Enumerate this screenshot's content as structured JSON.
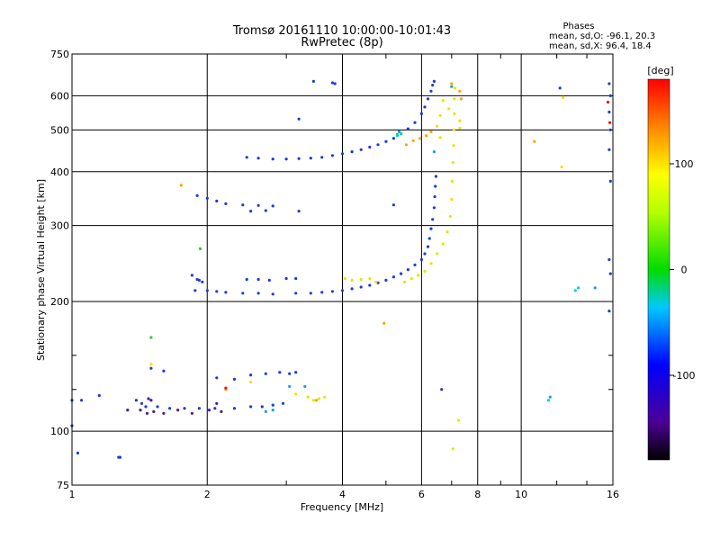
{
  "chart_data": {
    "type": "scatter",
    "title": "Tromsø 20161110 10:00:00-10:01:43",
    "subtitle": "RwPretec (8p)",
    "stats": {
      "heading": "Phases",
      "line_o": "mean, sd,O: -96.1, 20.3",
      "line_x": "mean, sd,X:  96.4, 18.4"
    },
    "xlabel": "Frequency [MHz]",
    "ylabel": "Stationary phase Virtual Height [km]",
    "x_scale": "log",
    "y_scale": "log",
    "xlim": [
      1,
      16
    ],
    "ylim": [
      75,
      750
    ],
    "x_ticks": [
      {
        "v": 1,
        "label": "1"
      },
      {
        "v": 2,
        "label": "2"
      },
      {
        "v": 4,
        "label": "4"
      },
      {
        "v": 6,
        "label": "6"
      },
      {
        "v": 8,
        "label": "8"
      },
      {
        "v": 10,
        "label": "10"
      },
      {
        "v": 16,
        "label": "16"
      }
    ],
    "x_minor_ticks": [
      3,
      5,
      7,
      9,
      12,
      14
    ],
    "y_ticks": [
      {
        "v": 75,
        "label": "75"
      },
      {
        "v": 100,
        "label": "100"
      },
      {
        "v": 200,
        "label": "200"
      },
      {
        "v": 300,
        "label": "300"
      },
      {
        "v": 400,
        "label": "400"
      },
      {
        "v": 500,
        "label": "500"
      },
      {
        "v": 600,
        "label": "600"
      },
      {
        "v": 750,
        "label": "750"
      }
    ],
    "y_minor_ticks": [
      125,
      150
    ],
    "grid": true,
    "colorbar": {
      "label": "[deg]",
      "range": [
        -180,
        180
      ],
      "ticks": [
        {
          "v": 100,
          "label": "100"
        },
        {
          "v": 0,
          "label": "0"
        },
        {
          "v": -100,
          "label": "-100"
        }
      ]
    },
    "series": [
      {
        "color": "#1e3cd2",
        "phase": -96,
        "points": [
          [
            1.0,
            118
          ],
          [
            1.05,
            118
          ],
          [
            1.15,
            121
          ],
          [
            1.0,
            103
          ],
          [
            1.03,
            89
          ],
          [
            1.27,
            87
          ],
          [
            1.28,
            87
          ],
          [
            1.39,
            118
          ],
          [
            1.43,
            116
          ],
          [
            1.46,
            114
          ],
          [
            1.55,
            114
          ],
          [
            1.65,
            113
          ],
          [
            1.78,
            113
          ],
          [
            1.92,
            113
          ],
          [
            2.08,
            113
          ],
          [
            2.3,
            113
          ],
          [
            2.5,
            114
          ],
          [
            2.65,
            114
          ],
          [
            2.8,
            115
          ],
          [
            2.95,
            116
          ],
          [
            2.1,
            133
          ],
          [
            2.3,
            132
          ],
          [
            2.5,
            135
          ],
          [
            2.7,
            136
          ],
          [
            2.9,
            137
          ],
          [
            3.05,
            136
          ],
          [
            3.15,
            137
          ],
          [
            1.5,
            140
          ],
          [
            1.6,
            138
          ],
          [
            1.85,
            230
          ],
          [
            1.9,
            225
          ],
          [
            1.95,
            222
          ],
          [
            2.0,
            212
          ],
          [
            2.1,
            211
          ],
          [
            2.2,
            210
          ],
          [
            2.4,
            209
          ],
          [
            2.6,
            209
          ],
          [
            2.8,
            208
          ],
          [
            2.45,
            225
          ],
          [
            2.6,
            225
          ],
          [
            2.75,
            224
          ],
          [
            3.0,
            226
          ],
          [
            3.15,
            226
          ],
          [
            3.15,
            209
          ],
          [
            3.4,
            209
          ],
          [
            3.6,
            210
          ],
          [
            3.8,
            211
          ],
          [
            4.0,
            212
          ],
          [
            4.2,
            214
          ],
          [
            4.4,
            216
          ],
          [
            4.6,
            218
          ],
          [
            4.8,
            221
          ],
          [
            5.0,
            224
          ],
          [
            5.2,
            228
          ],
          [
            5.4,
            232
          ],
          [
            5.6,
            237
          ],
          [
            5.8,
            243
          ],
          [
            6.0,
            250
          ],
          [
            6.1,
            258
          ],
          [
            6.2,
            268
          ],
          [
            6.25,
            280
          ],
          [
            6.3,
            295
          ],
          [
            6.35,
            310
          ],
          [
            6.4,
            330
          ],
          [
            6.42,
            350
          ],
          [
            6.44,
            370
          ],
          [
            6.46,
            390
          ],
          [
            1.9,
            352
          ],
          [
            2.0,
            347
          ],
          [
            2.1,
            342
          ],
          [
            2.2,
            337
          ],
          [
            2.4,
            335
          ],
          [
            2.6,
            334
          ],
          [
            2.8,
            333
          ],
          [
            3.2,
            324
          ],
          [
            2.5,
            324
          ],
          [
            2.7,
            325
          ],
          [
            2.45,
            432
          ],
          [
            2.6,
            430
          ],
          [
            2.8,
            428
          ],
          [
            3.0,
            428
          ],
          [
            3.2,
            429
          ],
          [
            3.4,
            430
          ],
          [
            3.6,
            432
          ],
          [
            3.8,
            436
          ],
          [
            4.0,
            440
          ],
          [
            4.2,
            445
          ],
          [
            4.4,
            450
          ],
          [
            4.6,
            456
          ],
          [
            4.8,
            462
          ],
          [
            5.0,
            470
          ],
          [
            5.2,
            478
          ],
          [
            5.4,
            490
          ],
          [
            5.6,
            503
          ],
          [
            5.8,
            520
          ],
          [
            6.0,
            545
          ],
          [
            6.1,
            565
          ],
          [
            6.2,
            590
          ],
          [
            6.3,
            615
          ],
          [
            6.35,
            635
          ],
          [
            6.4,
            648
          ],
          [
            3.45,
            648
          ],
          [
            3.8,
            643
          ],
          [
            3.85,
            640
          ],
          [
            3.2,
            530
          ],
          [
            12.2,
            625
          ],
          [
            15.7,
            640
          ],
          [
            15.8,
            600
          ],
          [
            15.7,
            550
          ],
          [
            15.8,
            500
          ],
          [
            15.7,
            450
          ],
          [
            15.8,
            380
          ],
          [
            15.7,
            250
          ],
          [
            15.8,
            232
          ],
          [
            15.7,
            190
          ],
          [
            5.2,
            335
          ],
          [
            6.65,
            125
          ],
          [
            1.92,
            224
          ],
          [
            1.88,
            212
          ]
        ]
      },
      {
        "color": "#4b1a96",
        "phase": -150,
        "points": [
          [
            1.42,
            112
          ],
          [
            1.47,
            110
          ],
          [
            1.52,
            111
          ],
          [
            1.6,
            110
          ],
          [
            1.72,
            112
          ],
          [
            1.85,
            110
          ],
          [
            2.02,
            112
          ],
          [
            2.15,
            111
          ],
          [
            1.5,
            118
          ],
          [
            2.1,
            116
          ],
          [
            1.33,
            112
          ],
          [
            1.48,
            119
          ]
        ]
      },
      {
        "color": "#19a0dc",
        "phase": -60,
        "points": [
          [
            2.7,
            111
          ],
          [
            2.8,
            112
          ],
          [
            3.05,
            127
          ],
          [
            3.3,
            127
          ],
          [
            5.35,
            495
          ],
          [
            6.4,
            445
          ],
          [
            7.0,
            630
          ],
          [
            11.6,
            120
          ],
          [
            14.6,
            215
          ]
        ]
      },
      {
        "color": "#e6e600",
        "phase": 95,
        "points": [
          [
            3.15,
            122
          ],
          [
            3.35,
            120
          ],
          [
            3.45,
            118
          ],
          [
            3.55,
            119
          ],
          [
            3.65,
            120
          ],
          [
            4.05,
            226
          ],
          [
            4.2,
            224
          ],
          [
            4.4,
            225
          ],
          [
            4.6,
            226
          ],
          [
            4.75,
            222
          ],
          [
            5.5,
            222
          ],
          [
            5.7,
            226
          ],
          [
            5.9,
            230
          ],
          [
            6.1,
            235
          ],
          [
            6.3,
            245
          ],
          [
            6.5,
            258
          ],
          [
            6.7,
            272
          ],
          [
            6.85,
            290
          ],
          [
            6.95,
            315
          ],
          [
            7.0,
            345
          ],
          [
            7.02,
            380
          ],
          [
            7.05,
            420
          ],
          [
            7.07,
            460
          ],
          [
            7.08,
            500
          ],
          [
            7.1,
            545
          ],
          [
            7.1,
            590
          ],
          [
            7.12,
            625
          ],
          [
            6.6,
            540
          ],
          [
            6.7,
            585
          ],
          [
            6.5,
            510
          ],
          [
            6.9,
            560
          ],
          [
            6.6,
            480
          ],
          [
            7.3,
            505
          ],
          [
            7.3,
            525
          ],
          [
            12.4,
            595
          ],
          [
            12.3,
            410
          ],
          [
            7.05,
            91
          ],
          [
            7.25,
            106
          ],
          [
            1.5,
            143
          ],
          [
            2.5,
            130
          ]
        ]
      },
      {
        "color": "#ffa000",
        "phase": 140,
        "points": [
          [
            1.75,
            372
          ],
          [
            4.95,
            178
          ],
          [
            5.55,
            462
          ],
          [
            5.75,
            472
          ],
          [
            5.95,
            478
          ],
          [
            6.15,
            485
          ],
          [
            6.3,
            495
          ],
          [
            7.3,
            615
          ],
          [
            7.35,
            590
          ],
          [
            7.0,
            640
          ],
          [
            10.7,
            470
          ],
          [
            3.5,
            118
          ],
          [
            2.2,
            125
          ]
        ]
      },
      {
        "color": "#32c832",
        "phase": 30,
        "points": [
          [
            1.5,
            165
          ],
          [
            1.93,
            265
          ],
          [
            5.3,
            488
          ]
        ]
      },
      {
        "color": "#e61414",
        "phase": 175,
        "points": [
          [
            2.2,
            126
          ],
          [
            15.6,
            580
          ],
          [
            15.75,
            520
          ]
        ]
      },
      {
        "color": "#00d2d2",
        "phase": -20,
        "points": [
          [
            11.5,
            118
          ],
          [
            13.2,
            212
          ],
          [
            13.4,
            215
          ],
          [
            5.3,
            485
          ],
          [
            5.4,
            490
          ]
        ]
      }
    ]
  }
}
